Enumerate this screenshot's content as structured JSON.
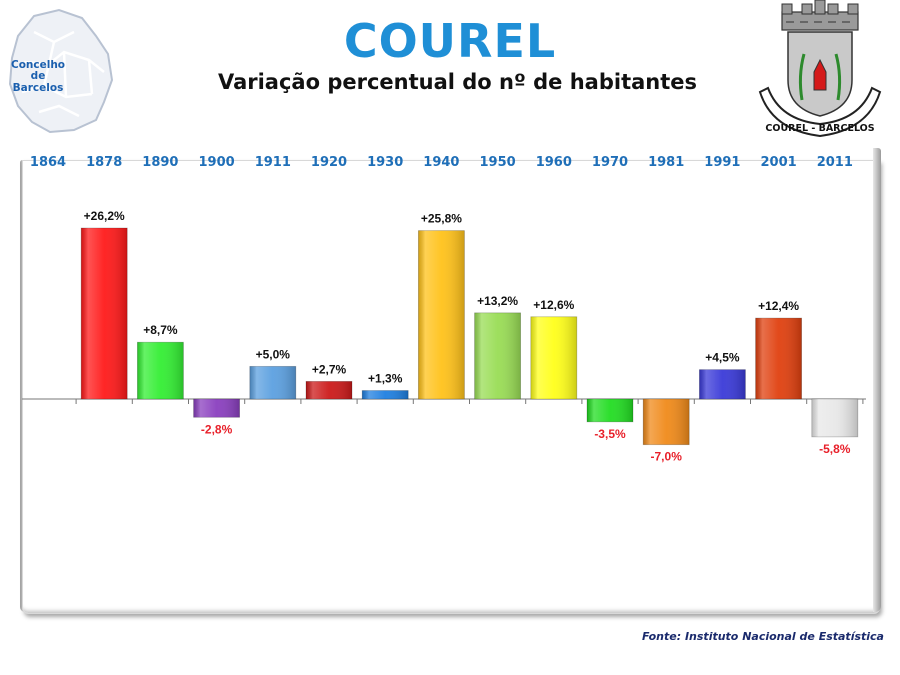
{
  "header": {
    "title": "COUREL",
    "subtitle": "Variação percentual do nº de habitantes"
  },
  "logo_left": {
    "lines": [
      "Concelho",
      "de",
      "Barcelos"
    ]
  },
  "logo_right": {
    "text": "COUREL - BARCELOS"
  },
  "source": "Fonte: Instituto Nacional de Estatística",
  "colors": {
    "title": "#1f8fd6",
    "year_labels": "#1f6fb8",
    "positive_label": "#111111",
    "negative_label": "#e8202a"
  },
  "chart_data": {
    "type": "bar",
    "title": "Variação percentual do nº de habitantes",
    "categories": [
      "1864",
      "1878",
      "1890",
      "1900",
      "1911",
      "1920",
      "1930",
      "1940",
      "1950",
      "1960",
      "1970",
      "1981",
      "1991",
      "2001",
      "2011"
    ],
    "values": [
      null,
      26.2,
      8.7,
      -2.8,
      5.0,
      2.7,
      1.3,
      25.8,
      13.2,
      12.6,
      -3.5,
      -7.0,
      4.5,
      12.4,
      -5.8
    ],
    "value_labels": [
      "",
      "+26,2%",
      "+8,7%",
      "-2,8%",
      "+5,0%",
      "+2,7%",
      "+1,3%",
      "+25,8%",
      "+13,2%",
      "+12,6%",
      "-3,5%",
      "-7,0%",
      "+4,5%",
      "+12,4%",
      "-5,8%"
    ],
    "bar_colors": [
      "",
      "#ff1a1a",
      "#33ee33",
      "#8a3fbf",
      "#5ca0e0",
      "#cc1a1a",
      "#1f7fe0",
      "#ffc21a",
      "#99dd55",
      "#ffff1a",
      "#22dd22",
      "#f08a1a",
      "#3a3ad8",
      "#e0400f",
      "#e8e8e8"
    ],
    "category_position": "top",
    "ylim": [
      -7.5,
      26.5
    ],
    "grid": false,
    "legend": "none"
  }
}
